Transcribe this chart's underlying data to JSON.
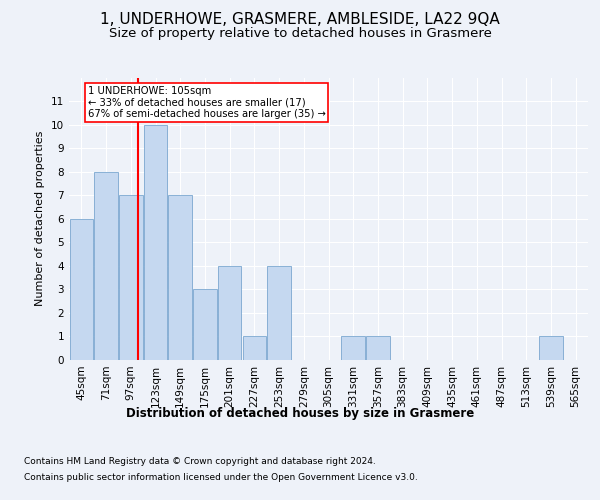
{
  "title": "1, UNDERHOWE, GRASMERE, AMBLESIDE, LA22 9QA",
  "subtitle": "Size of property relative to detached houses in Grasmere",
  "xlabel": "Distribution of detached houses by size in Grasmere",
  "ylabel": "Number of detached properties",
  "categories": [
    "45sqm",
    "71sqm",
    "97sqm",
    "123sqm",
    "149sqm",
    "175sqm",
    "201sqm",
    "227sqm",
    "253sqm",
    "279sqm",
    "305sqm",
    "331sqm",
    "357sqm",
    "383sqm",
    "409sqm",
    "435sqm",
    "461sqm",
    "487sqm",
    "513sqm",
    "539sqm",
    "565sqm"
  ],
  "values": [
    6,
    8,
    7,
    10,
    7,
    3,
    4,
    1,
    4,
    0,
    0,
    1,
    1,
    0,
    0,
    0,
    0,
    0,
    0,
    1,
    0
  ],
  "bar_color": "#c5d8f0",
  "bar_edge_color": "#7ba7d0",
  "annotation_box_text": "1 UNDERHOWE: 105sqm\n← 33% of detached houses are smaller (17)\n67% of semi-detached houses are larger (35) →",
  "ylim": [
    0,
    12
  ],
  "yticks": [
    0,
    1,
    2,
    3,
    4,
    5,
    6,
    7,
    8,
    9,
    10,
    11
  ],
  "footer_line1": "Contains HM Land Registry data © Crown copyright and database right 2024.",
  "footer_line2": "Contains public sector information licensed under the Open Government Licence v3.0.",
  "background_color": "#eef2f9",
  "grid_color": "#ffffff",
  "title_fontsize": 11,
  "subtitle_fontsize": 9.5,
  "xlabel_fontsize": 8.5,
  "ylabel_fontsize": 8,
  "tick_fontsize": 7.5,
  "footer_fontsize": 6.5
}
